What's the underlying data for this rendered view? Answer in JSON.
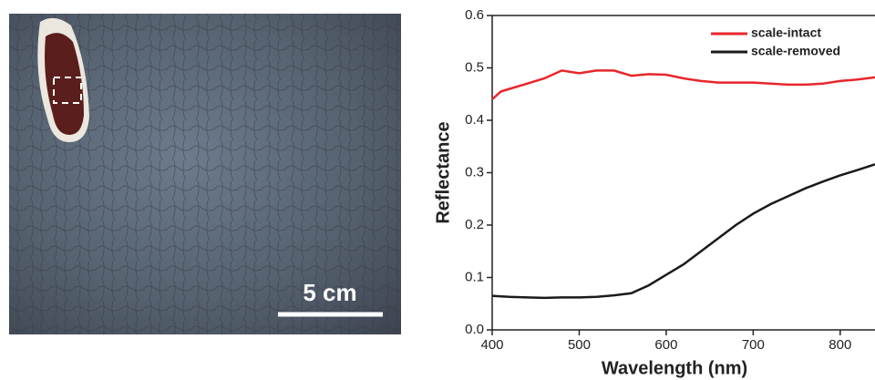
{
  "photo": {
    "scale_label": "5 cm"
  },
  "chart_data": {
    "type": "line",
    "x_label": "Wavelength (nm)",
    "y_label": "Reflectance",
    "x": [
      400,
      410,
      420,
      440,
      460,
      480,
      500,
      520,
      540,
      560,
      580,
      600,
      620,
      640,
      660,
      680,
      700,
      720,
      740,
      760,
      780,
      800,
      820,
      840
    ],
    "series": [
      {
        "name": "scale-intact",
        "color": "#e8262b",
        "values": [
          0.44,
          0.455,
          0.46,
          0.47,
          0.48,
          0.495,
          0.49,
          0.495,
          0.495,
          0.485,
          0.488,
          0.487,
          0.48,
          0.475,
          0.472,
          0.472,
          0.472,
          0.47,
          0.468,
          0.468,
          0.47,
          0.475,
          0.478,
          0.482
        ]
      },
      {
        "name": "scale-removed",
        "color": "#1a1a1a",
        "values": [
          0.065,
          0.064,
          0.063,
          0.062,
          0.061,
          0.062,
          0.062,
          0.063,
          0.066,
          0.07,
          0.085,
          0.105,
          0.125,
          0.15,
          0.175,
          0.2,
          0.222,
          0.24,
          0.255,
          0.27,
          0.283,
          0.295,
          0.305,
          0.316
        ]
      }
    ],
    "xlim": [
      400,
      840
    ],
    "ylim": [
      0,
      0.6
    ],
    "xticks": [
      400,
      500,
      600,
      700,
      800
    ],
    "yticks": [
      {
        "value": 0,
        "label": "0.0"
      },
      0.1,
      0.2,
      0.3,
      0.4,
      0.5,
      0.6
    ],
    "legend": "upper right"
  }
}
